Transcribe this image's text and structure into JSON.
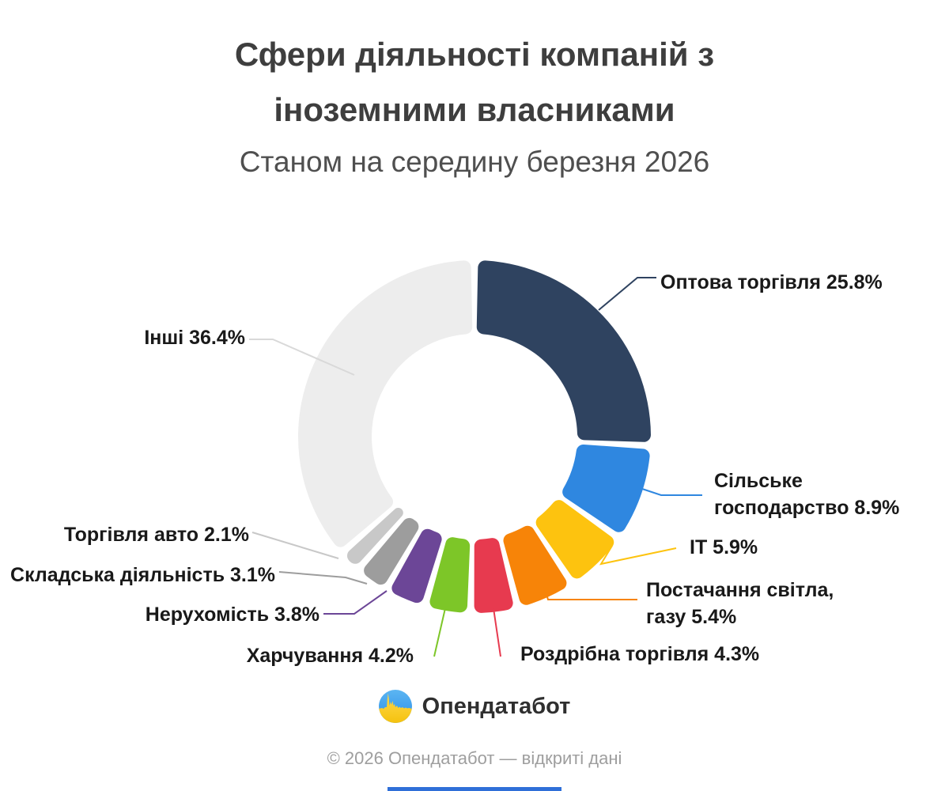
{
  "header": {
    "title": "Сфери діяльності компаній з\nіноземними власниками",
    "subtitle": "Станом на середину березня 2026"
  },
  "chart_data": {
    "type": "pie",
    "donut": true,
    "title": "Сфери діяльності компаній з іноземними власниками",
    "subtitle": "Станом на середину березня 2026",
    "unit": "%",
    "start_angle_deg": 0,
    "direction": "clockwise",
    "legend_position": "callout-labels",
    "categories": [
      "Оптова торгівля",
      "Сільське господарство",
      "ІТ",
      "Постачання світла, газу",
      "Роздрібна торгівля",
      "Харчування",
      "Нерухомість",
      "Складська діяльність",
      "Торгівля авто",
      "Інші"
    ],
    "values": [
      25.8,
      8.9,
      5.9,
      5.4,
      4.3,
      4.2,
      3.8,
      3.1,
      2.1,
      36.4
    ],
    "slices": [
      {
        "label": "Оптова торгівля",
        "value": 25.8,
        "color": "#2f4360",
        "display": "Оптова торгівля 25.8%"
      },
      {
        "label": "Сільське господарство",
        "value": 8.9,
        "color": "#2f87e0",
        "display": "Сільське\nгосподарство 8.9%"
      },
      {
        "label": "ІТ",
        "value": 5.9,
        "color": "#fdc30f",
        "display": "ІТ 5.9%"
      },
      {
        "label": "Постачання світла, газу",
        "value": 5.4,
        "color": "#f78408",
        "display": "Постачання світла,\nгазу 5.4%"
      },
      {
        "label": "Роздрібна торгівля",
        "value": 4.3,
        "color": "#e73a4f",
        "display": "Роздрібна торгівля 4.3%"
      },
      {
        "label": "Харчування",
        "value": 4.2,
        "color": "#7dc628",
        "display": "Харчування 4.2%"
      },
      {
        "label": "Нерухомість",
        "value": 3.8,
        "color": "#6c4697",
        "display": "Нерухомість 3.8%"
      },
      {
        "label": "Складська діяльність",
        "value": 3.1,
        "color": "#9d9d9d",
        "display": "Складська діяльність 3.1%"
      },
      {
        "label": "Торгівля авто",
        "value": 2.1,
        "color": "#c8c8c8",
        "display": "Торгівля авто 2.1%"
      },
      {
        "label": "Інші",
        "value": 36.4,
        "color": "#ededed",
        "display": "Інші 36.4%",
        "leader_color": "#d9d9d9"
      }
    ]
  },
  "branding": {
    "logo_text": "Опендатабот",
    "logo_icon": "opendatabot-flag-skyline-circle-icon",
    "icon_blue_top": "#5cb5f2",
    "icon_blue_bottom": "#2b8fe8",
    "icon_yellow_top": "#ffd94e",
    "icon_yellow_bottom": "#f5c20e"
  },
  "footer": {
    "copyright": "© 2026 Опендатабот — відкриті дані"
  },
  "accents": {
    "bottom_bar_color": "#2f6fd8"
  }
}
